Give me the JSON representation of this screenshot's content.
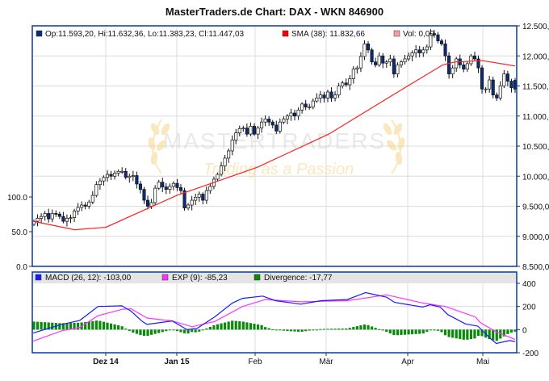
{
  "title": "MasterTraders.de Chart: DAX - WKN 846900",
  "watermark": {
    "brand": "MASTERTRADERS",
    "slogan": "Trading as a Passion"
  },
  "colors": {
    "bull_body": "#ffffff",
    "bear_body": "#0a2d78",
    "sma": "#ff2020",
    "vol": "#f4a0a0",
    "macd": "#1a1aff",
    "exp": "#ff33ff",
    "divergence": "#0a8a0a",
    "frame": "#0a3a9a"
  },
  "chart_data": [
    {
      "type": "candlestick",
      "legend": {
        "ohlc": "Op:11.593,20, Hi:11.632,36, Lo:11.383,23, Cl:11.447,03",
        "sma": "SMA (38): 11.832,66",
        "vol": "Vol: 0,00"
      },
      "y_right_ticks": [
        "12.500,0",
        "12.000,0",
        "11.500,0",
        "11.000,0",
        "10.500,0",
        "10.000,0",
        "9.500,0",
        "9.000,0",
        "8.500,0"
      ],
      "y_right_values": [
        12500,
        12000,
        11500,
        11000,
        10500,
        10000,
        9500,
        9000,
        8500
      ],
      "ylim": [
        8500,
        12500
      ],
      "y_left_ticks": [
        "100.0",
        "50.0",
        "0.0"
      ],
      "y_left_values": [
        100,
        50,
        0
      ],
      "vol_lim": [
        0,
        150
      ],
      "last": {
        "open": 11593.2,
        "high": 11632.36,
        "low": 11383.23,
        "close": 11447.03
      },
      "closes_by_month": {
        "2014-11": [
          9250,
          9300,
          9330,
          9380,
          9290,
          9380,
          9370,
          9330,
          9250,
          9300,
          9310,
          9420,
          9480,
          9520,
          9500,
          9570,
          9680,
          9860,
          9920,
          9980
        ],
        "2014-12": [
          10030,
          10000,
          10050,
          10080,
          10080,
          9980,
          10000,
          10010,
          9870,
          9780,
          9600,
          9500,
          9560,
          9800,
          9900,
          9820,
          9780,
          9830,
          9880,
          9810
        ],
        "2015-01": [
          9760,
          9470,
          9520,
          9600,
          9650,
          9700,
          9600,
          9760,
          9830,
          9950,
          10030,
          10170,
          10300,
          10420,
          10600,
          10720,
          10790,
          10800,
          10700,
          10830,
          10700
        ],
        "2015-02": [
          10800,
          10900,
          10950,
          10900,
          10850,
          10750,
          10900,
          10950,
          11000,
          11050,
          11000,
          11100,
          11200,
          11150,
          11150,
          11250,
          11300,
          11350,
          11300,
          11400
        ],
        "2015-03": [
          11300,
          11350,
          11500,
          11550,
          11520,
          11620,
          11780,
          11800,
          11990,
          12200,
          12100,
          11900,
          11850,
          12000,
          11880,
          11900,
          11950,
          11700,
          11850,
          11900,
          11950,
          12000
        ],
        "2015-04": [
          12050,
          12100,
          12050,
          12100,
          12150,
          12370,
          12350,
          12250,
          12200,
          12000,
          11700,
          11800,
          11950,
          11850,
          11780,
          11870,
          12000,
          11950,
          11800,
          11450
        ],
        "2015-05": [
          11450,
          11600,
          11350,
          11300,
          11500,
          11700,
          11580,
          11470,
          11447.03
        ]
      },
      "sma_38": [
        {
          "date": "2014-11-03",
          "value": 9250
        },
        {
          "date": "2014-11-19",
          "value": 9110
        },
        {
          "date": "2014-12-01",
          "value": 9150
        },
        {
          "date": "2015-01-01",
          "value": 9680
        },
        {
          "date": "2015-02-02",
          "value": 10150
        },
        {
          "date": "2015-03-02",
          "value": 10700
        },
        {
          "date": "2015-04-01",
          "value": 11500
        },
        {
          "date": "2015-04-15",
          "value": 11850
        },
        {
          "date": "2015-04-20",
          "value": 11900
        },
        {
          "date": "2015-05-01",
          "value": 11920
        },
        {
          "date": "2015-05-13",
          "value": 11832.66
        }
      ],
      "volume": 0
    },
    {
      "type": "line",
      "legend": {
        "macd": "MACD (26, 12): -103,00",
        "exp": "EXP (9): -85,23",
        "divergence": "Divergence: -17,77"
      },
      "y_ticks": [
        "400",
        "200",
        "0",
        "-200"
      ],
      "y_values": [
        400,
        200,
        0,
        -200
      ],
      "ylim": [
        -200,
        400
      ],
      "x_ticks": [
        {
          "label": "Dez 14",
          "date": "2014-12-01",
          "bold": true
        },
        {
          "label": "Jan 15",
          "date": "2015-01-01",
          "bold": true
        },
        {
          "label": "Feb",
          "date": "2015-02-01",
          "bold": false
        },
        {
          "label": "Mär",
          "date": "2015-03-01",
          "bold": false
        },
        {
          "label": "Apr",
          "date": "2015-04-01",
          "bold": false
        },
        {
          "label": "Mai",
          "date": "2015-05-01",
          "bold": false
        }
      ],
      "macd": [
        {
          "date": "2014-11-03",
          "value": -30
        },
        {
          "date": "2014-11-14",
          "value": 45
        },
        {
          "date": "2014-11-21",
          "value": 80
        },
        {
          "date": "2014-11-28",
          "value": 200
        },
        {
          "date": "2014-12-08",
          "value": 205
        },
        {
          "date": "2014-12-12",
          "value": 160
        },
        {
          "date": "2014-12-17",
          "value": 70
        },
        {
          "date": "2014-12-19",
          "value": 45
        },
        {
          "date": "2014-12-30",
          "value": 75
        },
        {
          "date": "2015-01-05",
          "value": 0
        },
        {
          "date": "2015-01-09",
          "value": 10
        },
        {
          "date": "2015-01-16",
          "value": 110
        },
        {
          "date": "2015-01-23",
          "value": 230
        },
        {
          "date": "2015-01-27",
          "value": 270
        },
        {
          "date": "2015-02-04",
          "value": 290
        },
        {
          "date": "2015-02-09",
          "value": 250
        },
        {
          "date": "2015-02-19",
          "value": 220
        },
        {
          "date": "2015-02-27",
          "value": 250
        },
        {
          "date": "2015-03-09",
          "value": 260
        },
        {
          "date": "2015-03-16",
          "value": 320
        },
        {
          "date": "2015-03-24",
          "value": 280
        },
        {
          "date": "2015-03-27",
          "value": 235
        },
        {
          "date": "2015-04-07",
          "value": 195
        },
        {
          "date": "2015-04-10",
          "value": 215
        },
        {
          "date": "2015-04-14",
          "value": 195
        },
        {
          "date": "2015-04-17",
          "value": 130
        },
        {
          "date": "2015-04-24",
          "value": 50
        },
        {
          "date": "2015-04-29",
          "value": 30
        },
        {
          "date": "2015-05-04",
          "value": -80
        },
        {
          "date": "2015-05-06",
          "value": -120
        },
        {
          "date": "2015-05-11",
          "value": -95
        },
        {
          "date": "2015-05-13",
          "value": -103
        }
      ],
      "exp": [
        {
          "date": "2014-11-03",
          "value": -100
        },
        {
          "date": "2014-11-14",
          "value": -10
        },
        {
          "date": "2014-11-21",
          "value": 20
        },
        {
          "date": "2014-11-28",
          "value": 120
        },
        {
          "date": "2014-12-08",
          "value": 175
        },
        {
          "date": "2014-12-12",
          "value": 180
        },
        {
          "date": "2014-12-19",
          "value": 100
        },
        {
          "date": "2014-12-30",
          "value": 75
        },
        {
          "date": "2015-01-07",
          "value": 25
        },
        {
          "date": "2015-01-16",
          "value": 70
        },
        {
          "date": "2015-01-27",
          "value": 200
        },
        {
          "date": "2015-02-05",
          "value": 260
        },
        {
          "date": "2015-02-19",
          "value": 240
        },
        {
          "date": "2015-03-09",
          "value": 250
        },
        {
          "date": "2015-03-24",
          "value": 300
        },
        {
          "date": "2015-04-07",
          "value": 230
        },
        {
          "date": "2015-04-16",
          "value": 200
        },
        {
          "date": "2015-04-28",
          "value": 110
        },
        {
          "date": "2015-04-30",
          "value": 60
        },
        {
          "date": "2015-05-06",
          "value": -20
        },
        {
          "date": "2015-05-13",
          "value": -85.23
        }
      ]
    }
  ]
}
